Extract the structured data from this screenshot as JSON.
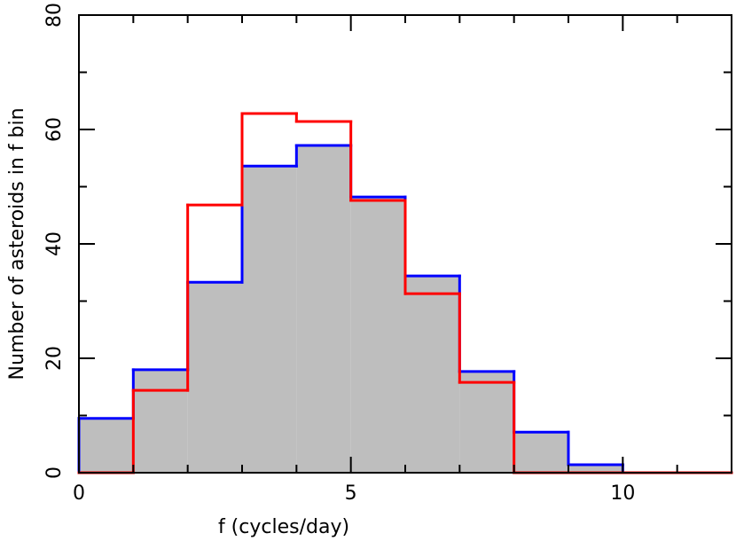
{
  "chart_data": {
    "type": "histogram",
    "xlabel": "f (cycles/day)",
    "ylabel": "Number of asteroids in f bin",
    "bins": [
      0,
      1,
      2,
      3,
      4,
      5,
      6,
      7,
      8,
      9,
      10,
      11,
      12
    ],
    "series": [
      {
        "color": "#0000ff",
        "fill": "#bebebe",
        "values": [
          9.5,
          18.0,
          33.3,
          53.6,
          57.2,
          48.2,
          34.4,
          17.7,
          7.1,
          1.4,
          0,
          0
        ]
      },
      {
        "color": "#ff0000",
        "values": [
          0,
          14.4,
          46.8,
          62.8,
          61.4,
          47.6,
          31.3,
          15.8,
          0,
          0,
          0,
          0
        ]
      }
    ],
    "xlim": [
      0,
      12
    ],
    "xticks": [
      0,
      5,
      10
    ],
    "xminorticks": [
      1,
      2,
      3,
      4,
      6,
      7,
      8,
      9,
      11
    ],
    "ylim": [
      0,
      80
    ],
    "yticks": [
      0,
      20,
      40,
      60,
      80
    ],
    "yminorticks": [
      10,
      30,
      50,
      70
    ]
  }
}
